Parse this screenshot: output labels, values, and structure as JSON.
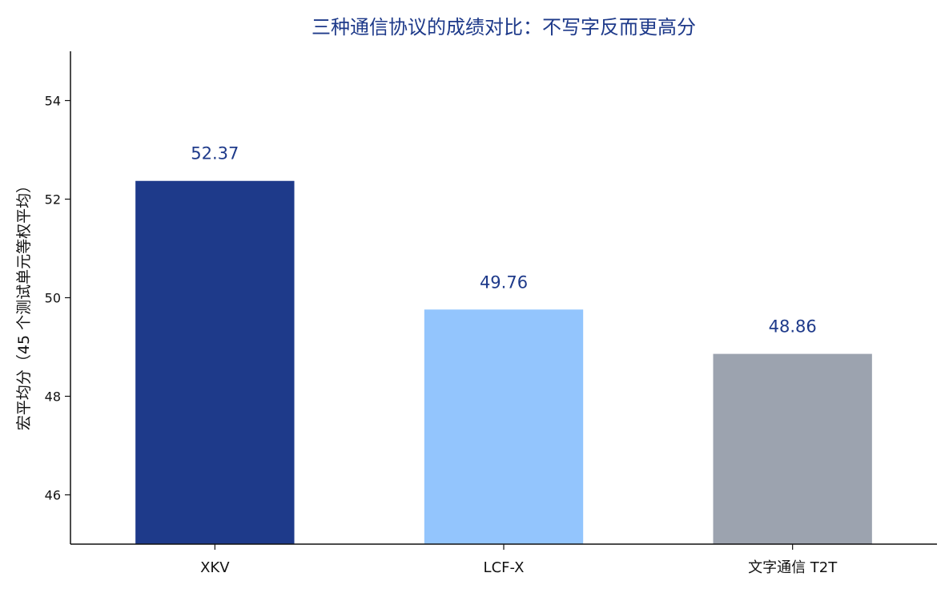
{
  "chart_data": {
    "type": "bar",
    "title": "三种通信协议的成绩对比：不写字反而更高分",
    "xlabel": "",
    "ylabel": "宏平均分（45 个测试单元等权平均）",
    "categories": [
      "XKV",
      "LCF-X",
      "文字通信 T2T"
    ],
    "values": [
      52.37,
      49.76,
      48.86
    ],
    "value_labels": [
      "52.37",
      "49.76",
      "48.86"
    ],
    "ylim": [
      45,
      55
    ],
    "yticks": [
      46,
      48,
      50,
      52,
      54
    ],
    "ytick_labels": [
      "46",
      "48",
      "50",
      "52",
      "54"
    ],
    "colors": [
      "#1e3a8a",
      "#93c5fd",
      "#9ca3af"
    ],
    "value_label_color": "#1e3a8a",
    "grid": false,
    "legend": "none"
  }
}
